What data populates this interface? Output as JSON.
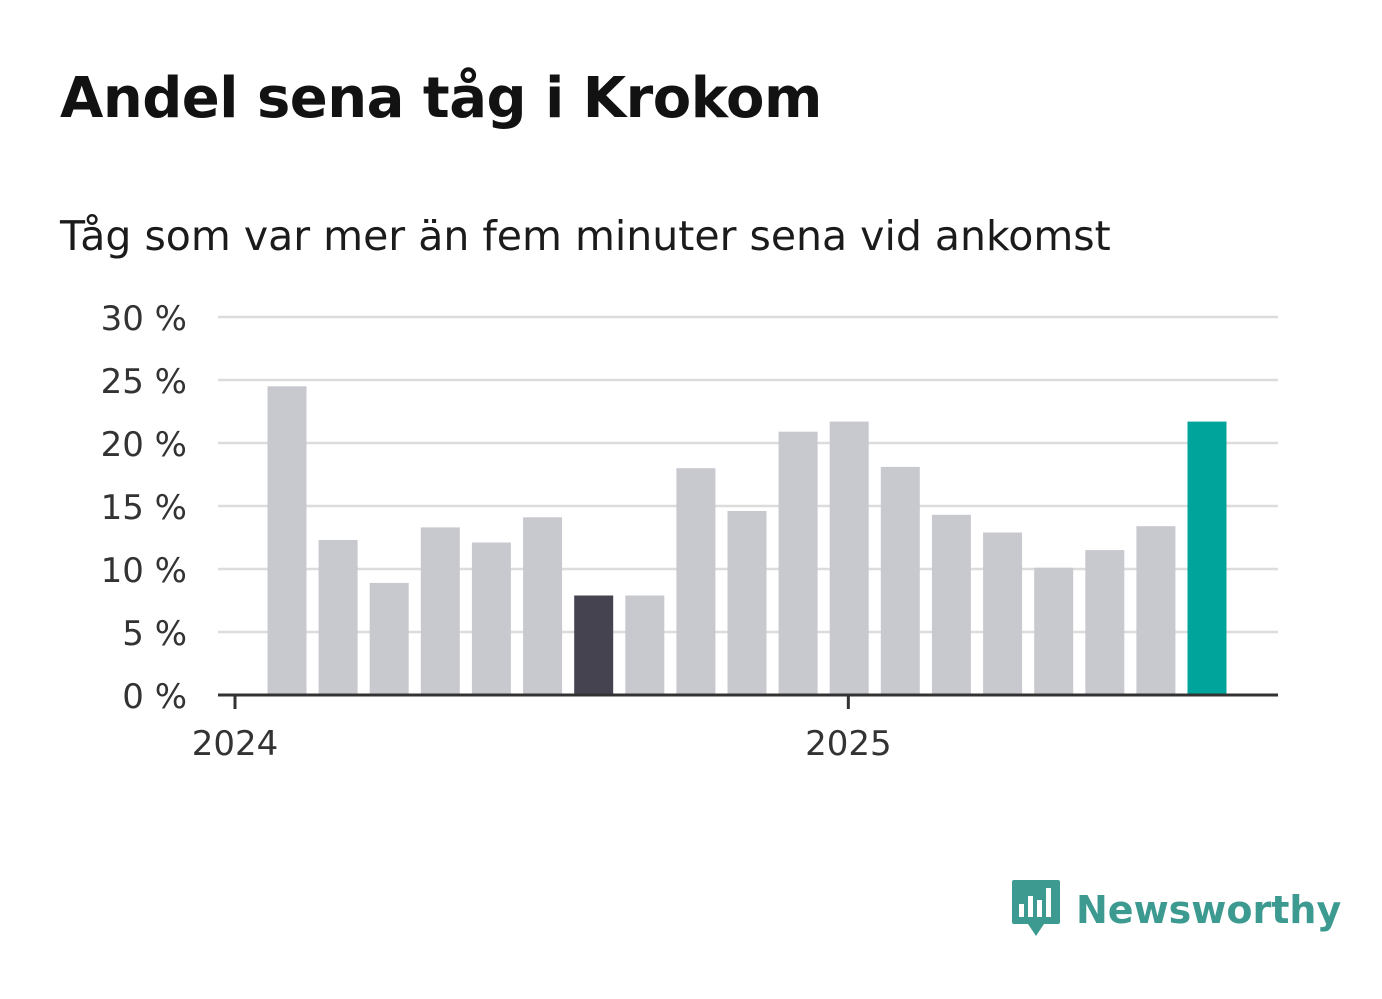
{
  "title": "Andel sena tåg i Krokom",
  "subtitle": "Tåg som var mer än fem minuter sena vid ankomst",
  "chart_data": {
    "type": "bar",
    "y_ticks": [
      "0 %",
      "5 %",
      "10 %",
      "15 %",
      "20 %",
      "25 %",
      "30 %"
    ],
    "x_ticks": [
      "2024",
      "2025"
    ],
    "ylim": [
      0,
      30
    ],
    "grid": true,
    "unit": "%",
    "values": [
      24.5,
      12.3,
      8.9,
      13.3,
      12.1,
      14.1,
      7.9,
      7.9,
      18.0,
      14.6,
      20.9,
      21.7,
      18.1,
      14.3,
      12.9,
      10.1,
      11.5,
      13.4,
      21.7
    ],
    "highlight_dark_index": 6,
    "highlight_latest_index": 18,
    "colors": {
      "bar": "#c8c8cf",
      "dark": "#45434f",
      "latest": "#00a49a",
      "grid": "#dcdcdc",
      "axis": "#333333"
    }
  },
  "brand": {
    "name": "Newsworthy",
    "icon": "newsworthy-logo-icon",
    "color": "#3d9a91"
  }
}
